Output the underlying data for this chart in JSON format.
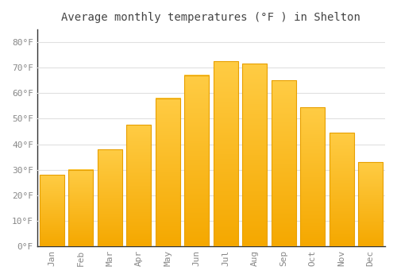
{
  "title": "Average monthly temperatures (°F ) in Shelton",
  "months": [
    "Jan",
    "Feb",
    "Mar",
    "Apr",
    "May",
    "Jun",
    "Jul",
    "Aug",
    "Sep",
    "Oct",
    "Nov",
    "Dec"
  ],
  "values": [
    28,
    30,
    38,
    47.5,
    58,
    67,
    72.5,
    71.5,
    65,
    54.5,
    44.5,
    33
  ],
  "bar_color_top": "#FFCC44",
  "bar_color_bottom": "#F5A800",
  "bar_edge_color": "#E8A000",
  "background_color": "#FFFFFF",
  "plot_bg_color": "#FFFFFF",
  "grid_color": "#E0E0E0",
  "tick_label_color": "#888888",
  "title_color": "#444444",
  "ylim": [
    0,
    85
  ],
  "yticks": [
    0,
    10,
    20,
    30,
    40,
    50,
    60,
    70,
    80
  ],
  "ytick_labels": [
    "0°F",
    "10°F",
    "20°F",
    "30°F",
    "40°F",
    "50°F",
    "60°F",
    "70°F",
    "80°F"
  ],
  "bar_width": 0.85
}
